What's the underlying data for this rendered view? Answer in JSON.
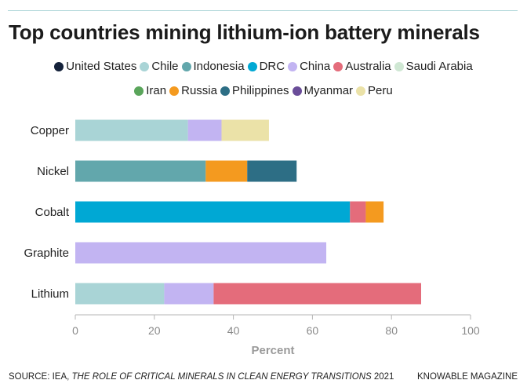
{
  "title": "Top countries mining lithium-ion battery minerals",
  "legend": {
    "rows": [
      [
        "United States",
        "Chile",
        "Indonesia",
        "DRC",
        "China",
        "Australia",
        "Saudi Arabia"
      ],
      [
        "Iran",
        "Russia",
        "Philippines",
        "Myanmar",
        "Peru"
      ]
    ]
  },
  "colors": {
    "United States": "#14213a",
    "Chile": "#a9d4d6",
    "Indonesia": "#62a7ac",
    "DRC": "#00a8d4",
    "China": "#c2b4f2",
    "Australia": "#e46c7b",
    "Saudi Arabia": "#cfe7d3",
    "Iran": "#5aa55b",
    "Russia": "#f49a1f",
    "Philippines": "#2d6e85",
    "Myanmar": "#6a4d99",
    "Peru": "#ebe2a8"
  },
  "chart_data": {
    "type": "bar",
    "orientation": "horizontal",
    "stacked": true,
    "categories": [
      "Copper",
      "Nickel",
      "Cobalt",
      "Graphite",
      "Lithium"
    ],
    "series": [
      {
        "name": "United States",
        "values": [
          0,
          0,
          0,
          0,
          0
        ]
      },
      {
        "name": "Chile",
        "values": [
          28.5,
          0,
          0,
          0,
          22.5
        ]
      },
      {
        "name": "Indonesia",
        "values": [
          0,
          33,
          0,
          0,
          0
        ]
      },
      {
        "name": "DRC",
        "values": [
          0,
          0,
          69.5,
          0,
          0
        ]
      },
      {
        "name": "China",
        "values": [
          8.5,
          0,
          0,
          63.5,
          12.5
        ]
      },
      {
        "name": "Australia",
        "values": [
          0,
          0,
          4,
          0,
          52.5
        ]
      },
      {
        "name": "Saudi Arabia",
        "values": [
          0,
          0,
          0,
          0,
          0
        ]
      },
      {
        "name": "Iran",
        "values": [
          0,
          0,
          0,
          0,
          0
        ]
      },
      {
        "name": "Russia",
        "values": [
          0,
          10.5,
          4.5,
          0,
          0
        ]
      },
      {
        "name": "Philippines",
        "values": [
          0,
          12.5,
          0,
          0,
          0
        ]
      },
      {
        "name": "Myanmar",
        "values": [
          0,
          0,
          0,
          0,
          0
        ]
      },
      {
        "name": "Peru",
        "values": [
          12,
          0,
          0,
          0,
          0
        ]
      }
    ],
    "xlabel": "Percent",
    "xlim": [
      0,
      100
    ],
    "xticks": [
      0,
      20,
      40,
      60,
      80,
      100
    ],
    "grid": false,
    "legend_position": "top"
  },
  "source": {
    "prefix": "SOURCE: IEA, ",
    "report": "THE ROLE OF CRITICAL MINERALS IN CLEAN ENERGY TRANSITIONS",
    "year": " 2021"
  },
  "brand": "KNOWABLE MAGAZINE"
}
